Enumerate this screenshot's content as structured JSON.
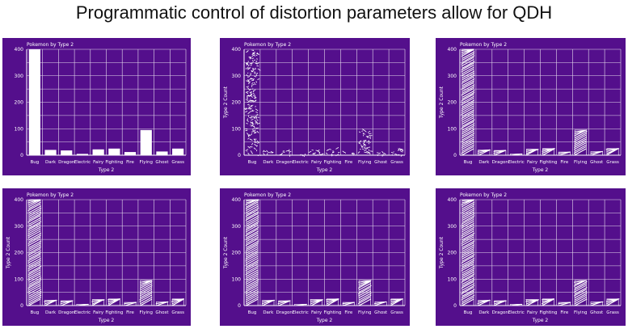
{
  "slide": {
    "title": "Programmatic control of distortion parameters allow for QDH"
  },
  "colors": {
    "panel_background": "#540f8c",
    "grid": "#ffffff",
    "marks": "#ffffff"
  },
  "chart_data": [
    {
      "type": "bar",
      "style": "clean",
      "title": "Pokemon by Type 2",
      "xlabel": "Type 2",
      "ylabel": "",
      "ylim": [
        0,
        400
      ],
      "yticks": [
        0,
        100,
        200,
        300,
        400
      ],
      "categories": [
        "Bug",
        "Dark",
        "Dragon",
        "Electric",
        "Fairy",
        "Fighting",
        "Fire",
        "Flying",
        "Ghost",
        "Grass"
      ],
      "values": [
        400,
        20,
        18,
        5,
        22,
        25,
        12,
        95,
        14,
        25
      ]
    },
    {
      "type": "bar",
      "style": "scribble",
      "title": "Pokemon by Type 2",
      "xlabel": "Type 2",
      "ylabel": "Type 2 Count",
      "ylim": [
        0,
        400
      ],
      "yticks": [
        0,
        100,
        200,
        300,
        400
      ],
      "categories": [
        "Bug",
        "Dark",
        "Dragon",
        "Electric",
        "Fairy",
        "Fighting",
        "Fire",
        "Flying",
        "Ghost",
        "Grass"
      ],
      "values": [
        400,
        20,
        18,
        5,
        22,
        25,
        12,
        95,
        14,
        25
      ]
    },
    {
      "type": "bar",
      "style": "hatch",
      "title": "Pokemon by Type 2",
      "xlabel": "Type 2",
      "ylabel": "Type 2 Count",
      "ylim": [
        0,
        400
      ],
      "yticks": [
        0,
        100,
        200,
        300,
        400
      ],
      "categories": [
        "Bug",
        "Dark",
        "Dragon",
        "Electric",
        "Fairy",
        "Fighting",
        "Fire",
        "Flying",
        "Ghost",
        "Grass"
      ],
      "values": [
        400,
        20,
        18,
        5,
        22,
        25,
        12,
        95,
        14,
        25
      ]
    },
    {
      "type": "bar",
      "style": "hatch",
      "title": "Pokemon by Type 2",
      "xlabel": "Type 2",
      "ylabel": "Type 2 Count",
      "ylim": [
        0,
        400
      ],
      "yticks": [
        0,
        100,
        200,
        300,
        400
      ],
      "categories": [
        "Bug",
        "Dark",
        "Dragon",
        "Electric",
        "Fairy",
        "Fighting",
        "Fire",
        "Flying",
        "Ghost",
        "Grass"
      ],
      "values": [
        400,
        20,
        18,
        5,
        22,
        25,
        12,
        95,
        14,
        25
      ]
    },
    {
      "type": "bar",
      "style": "hatch",
      "title": "Pokemon by Type 2",
      "xlabel": "Type 2",
      "ylabel": "Type 2 Count",
      "ylim": [
        0,
        400
      ],
      "yticks": [
        0,
        100,
        200,
        300,
        400
      ],
      "categories": [
        "Bug",
        "Dark",
        "Dragon",
        "Electric",
        "Fairy",
        "Fighting",
        "Fire",
        "Flying",
        "Ghost",
        "Grass"
      ],
      "values": [
        400,
        20,
        18,
        5,
        22,
        25,
        12,
        95,
        14,
        25
      ]
    },
    {
      "type": "bar",
      "style": "hatch",
      "title": "Pokemon by Type 2",
      "xlabel": "Type 2",
      "ylabel": "Type 2 Count",
      "ylim": [
        0,
        400
      ],
      "yticks": [
        0,
        100,
        200,
        300,
        400
      ],
      "categories": [
        "Bug",
        "Dark",
        "Dragon",
        "Electric",
        "Fairy",
        "Fighting",
        "Fire",
        "Flying",
        "Ghost",
        "Grass"
      ],
      "values": [
        400,
        20,
        18,
        5,
        22,
        25,
        12,
        95,
        14,
        25
      ]
    }
  ]
}
